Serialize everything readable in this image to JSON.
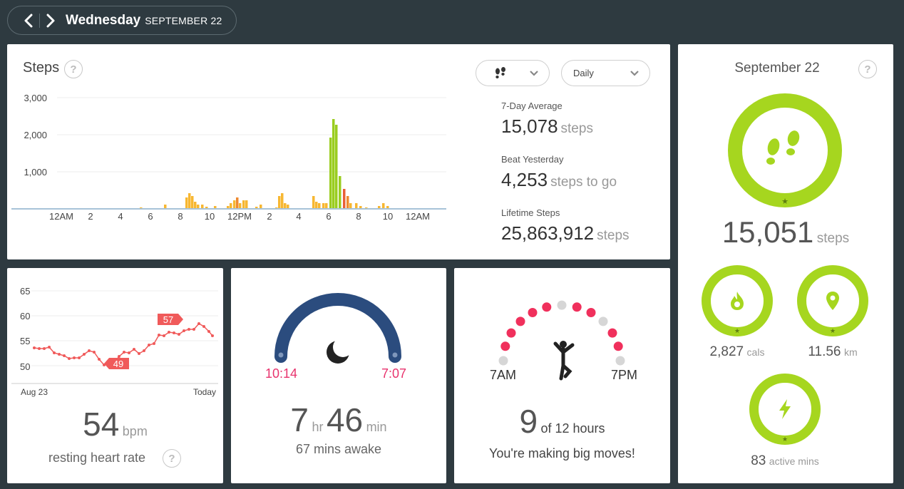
{
  "header": {
    "day": "Wednesday",
    "date": "SEPTEMBER 22"
  },
  "steps": {
    "title": "Steps",
    "help": "?",
    "view_select": "Daily",
    "y_ticks": [
      "3,000",
      "2,000",
      "1,000"
    ],
    "x_ticks": [
      "12AM",
      "2",
      "4",
      "6",
      "8",
      "10",
      "12PM",
      "2",
      "4",
      "6",
      "8",
      "10",
      "12AM"
    ],
    "seven_day_label": "7-Day Average",
    "seven_day_value": "15,078",
    "seven_day_unit": "steps",
    "beat_label": "Beat Yesterday",
    "beat_value": "4,253",
    "beat_unit": "steps to go",
    "lifetime_label": "Lifetime Steps",
    "lifetime_value": "25,863,912",
    "lifetime_unit": "steps",
    "colors": {
      "low": "#f7b731",
      "mid": "#ef8a30",
      "high": "#e95f36",
      "active": "#9acd1f",
      "baseline": "#a8c3d8"
    }
  },
  "summary": {
    "date": "September 22",
    "help": "?",
    "steps_value": "15,051",
    "steps_unit": "steps",
    "cals_value": "2,827",
    "cals_unit": "cals",
    "km_value": "11.56",
    "km_unit": "km",
    "active_value": "83",
    "active_unit": "active mins",
    "ring_color": "#a6d61f"
  },
  "heart": {
    "y_ticks": [
      "65",
      "60",
      "55",
      "50"
    ],
    "x_start": "Aug 23",
    "x_end": "Today",
    "max_flag": "57",
    "min_flag": "49",
    "bpm_value": "54",
    "bpm_unit": "bpm",
    "label": "resting heart rate",
    "help": "?",
    "line_color": "#f05a5a"
  },
  "sleep": {
    "start": "10:14",
    "end": "7:07",
    "hours": "7",
    "hours_unit": "hr",
    "mins": "46",
    "mins_unit": "min",
    "awake": "67 mins awake",
    "arc_color": "#2b4c7e",
    "time_color": "#e8336d"
  },
  "hourly": {
    "start": "7AM",
    "end": "7PM",
    "count": "9",
    "count_suffix": "of 12 hours",
    "message": "You're making big moves!",
    "dot_active": "#f0305c",
    "dot_inactive": "#d6d6d6"
  }
}
